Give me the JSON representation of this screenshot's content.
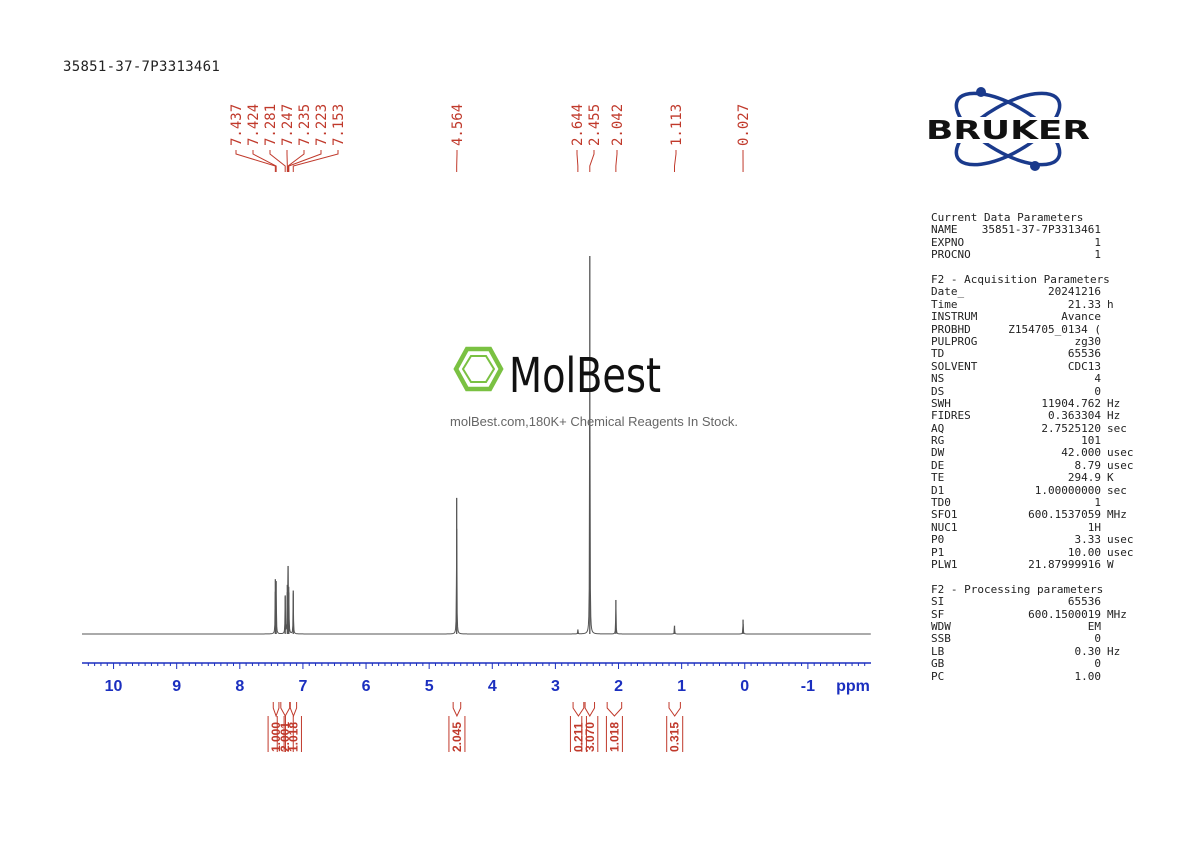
{
  "sample_title": "35851-37-7P3313461",
  "brand": {
    "name": "BRUKER",
    "color": "#1a3a8c"
  },
  "watermark": {
    "name": "MolBest",
    "tagline": "molBest.com,180K+ Chemical Reagents In Stock.",
    "accent_color": "#7ac142"
  },
  "colors": {
    "spectrum": "#555555",
    "axis": "#1b2fbf",
    "annotation": "#c0392b"
  },
  "params": {
    "current": {
      "heading": "Current Data Parameters",
      "rows": [
        {
          "key": "NAME",
          "value": "35851-37-7P3313461",
          "unit": ""
        },
        {
          "key": "EXPNO",
          "value": "1",
          "unit": ""
        },
        {
          "key": "PROCNO",
          "value": "1",
          "unit": ""
        }
      ]
    },
    "acquisition": {
      "heading": "F2 - Acquisition Parameters",
      "rows": [
        {
          "key": "Date_",
          "value": "20241216",
          "unit": ""
        },
        {
          "key": "Time",
          "value": "21.33",
          "unit": "h"
        },
        {
          "key": "INSTRUM",
          "value": "Avance",
          "unit": ""
        },
        {
          "key": "PROBHD",
          "value": "Z154705_0134 (",
          "unit": ""
        },
        {
          "key": "PULPROG",
          "value": "zg30",
          "unit": ""
        },
        {
          "key": "TD",
          "value": "65536",
          "unit": ""
        },
        {
          "key": "SOLVENT",
          "value": "CDC13",
          "unit": ""
        },
        {
          "key": "NS",
          "value": "4",
          "unit": ""
        },
        {
          "key": "DS",
          "value": "0",
          "unit": ""
        },
        {
          "key": "SWH",
          "value": "11904.762",
          "unit": "Hz"
        },
        {
          "key": "FIDRES",
          "value": "0.363304",
          "unit": "Hz"
        },
        {
          "key": "AQ",
          "value": "2.7525120",
          "unit": "sec"
        },
        {
          "key": "RG",
          "value": "101",
          "unit": ""
        },
        {
          "key": "DW",
          "value": "42.000",
          "unit": "usec"
        },
        {
          "key": "DE",
          "value": "8.79",
          "unit": "usec"
        },
        {
          "key": "TE",
          "value": "294.9",
          "unit": "K"
        },
        {
          "key": "D1",
          "value": "1.00000000",
          "unit": "sec"
        },
        {
          "key": "TD0",
          "value": "1",
          "unit": ""
        },
        {
          "key": "SFO1",
          "value": "600.1537059",
          "unit": "MHz"
        },
        {
          "key": "NUC1",
          "value": "1H",
          "unit": ""
        },
        {
          "key": "P0",
          "value": "3.33",
          "unit": "usec"
        },
        {
          "key": "P1",
          "value": "10.00",
          "unit": "usec"
        },
        {
          "key": "PLW1",
          "value": "21.87999916",
          "unit": "W"
        }
      ]
    },
    "processing": {
      "heading": "F2 - Processing parameters",
      "rows": [
        {
          "key": "SI",
          "value": "65536",
          "unit": ""
        },
        {
          "key": "SF",
          "value": "600.1500019",
          "unit": "MHz"
        },
        {
          "key": "WDW",
          "value": "EM",
          "unit": ""
        },
        {
          "key": "SSB",
          "value": "0",
          "unit": ""
        },
        {
          "key": "LB",
          "value": "0.30",
          "unit": "Hz"
        },
        {
          "key": "GB",
          "value": "0",
          "unit": ""
        },
        {
          "key": "PC",
          "value": "1.00",
          "unit": ""
        }
      ]
    }
  },
  "chart_data": {
    "type": "line",
    "xlabel": "ppm",
    "xlim": [
      10.5,
      -2.0
    ],
    "x_reversed": true,
    "ticks": [
      10,
      9,
      8,
      7,
      6,
      5,
      4,
      3,
      2,
      1,
      0,
      -1
    ],
    "tick_labels": [
      "10",
      "9",
      "8",
      "7",
      "6",
      "5",
      "4",
      "3",
      "2",
      "1",
      "0",
      "-1"
    ],
    "minor_tick_step": 0.1,
    "grid": false,
    "peaks": [
      {
        "ppm": 7.437,
        "height": 0.145
      },
      {
        "ppm": 7.424,
        "height": 0.14
      },
      {
        "ppm": 7.281,
        "height": 0.1
      },
      {
        "ppm": 7.247,
        "height": 0.13
      },
      {
        "ppm": 7.235,
        "height": 0.18
      },
      {
        "ppm": 7.223,
        "height": 0.11
      },
      {
        "ppm": 7.153,
        "height": 0.115
      },
      {
        "ppm": 4.564,
        "height": 0.36
      },
      {
        "ppm": 2.644,
        "height": 0.012
      },
      {
        "ppm": 2.455,
        "height": 1.0
      },
      {
        "ppm": 2.042,
        "height": 0.09
      },
      {
        "ppm": 1.113,
        "height": 0.022
      },
      {
        "ppm": 0.027,
        "height": 0.038
      }
    ],
    "peak_labels": [
      "7.437",
      "7.424",
      "7.281",
      "7.247",
      "7.235",
      "7.223",
      "7.153",
      "4.564",
      "2.644",
      "2.455",
      "2.042",
      "1.113",
      "0.027"
    ],
    "integrals": [
      {
        "from": 7.47,
        "to": 7.38,
        "value": "1.000"
      },
      {
        "from": 7.35,
        "to": 7.21,
        "value": "2.001"
      },
      {
        "from": 7.2,
        "to": 7.1,
        "value": "1.018"
      },
      {
        "from": 4.62,
        "to": 4.5,
        "value": "2.045"
      },
      {
        "from": 2.72,
        "to": 2.55,
        "value": "0.211"
      },
      {
        "from": 2.53,
        "to": 2.38,
        "value": "3.070"
      },
      {
        "from": 2.18,
        "to": 1.95,
        "value": "1.018"
      },
      {
        "from": 1.2,
        "to": 1.02,
        "value": "0.315"
      }
    ]
  }
}
